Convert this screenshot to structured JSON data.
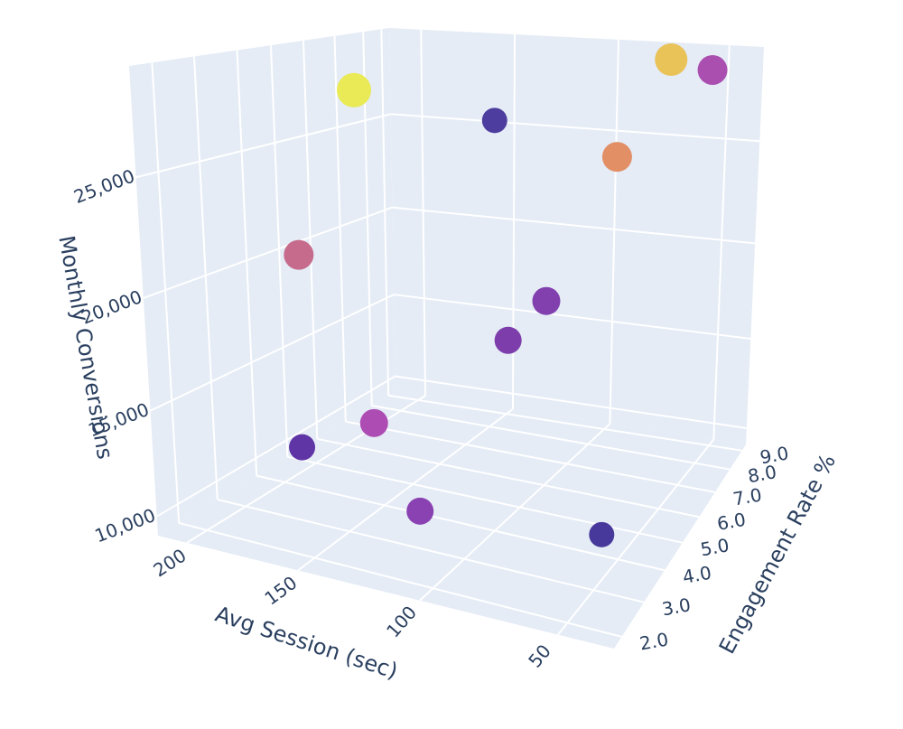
{
  "chart_data": {
    "type": "scatter3d",
    "xlabel": "Avg Session (sec)",
    "ylabel": "Engagement Rate %",
    "zlabel": "Monthly Conversions",
    "x_ticks": {
      "values": [
        200,
        150,
        100,
        50
      ],
      "labels": [
        "200",
        "150",
        "100",
        "50"
      ]
    },
    "y_ticks": {
      "values": [
        2,
        3,
        4,
        5,
        6,
        7,
        8,
        9
      ],
      "labels": [
        "2.0",
        "3.0",
        "4.0",
        "5.0",
        "6.0",
        "7.0",
        "8.0",
        "9.0"
      ]
    },
    "z_ticks": {
      "values": [
        10000,
        15000,
        20000,
        25000
      ],
      "labels": [
        "10,000",
        "15,000",
        "20,000",
        "25,000"
      ]
    },
    "points": [
      {
        "x": 216,
        "y": 7.6,
        "z": 26700,
        "size": 38,
        "color": "#e9ea55"
      },
      {
        "x": 136,
        "y": 7.0,
        "z": 26100,
        "size": 28,
        "color": "#4c3d9f"
      },
      {
        "x": 75,
        "y": 9.2,
        "z": 28800,
        "size": 36,
        "color": "#e9c258"
      },
      {
        "x": 53,
        "y": 8.7,
        "z": 28600,
        "size": 33,
        "color": "#aa4fb0"
      },
      {
        "x": 84,
        "y": 7.4,
        "z": 24700,
        "size": 33,
        "color": "#e28f66"
      },
      {
        "x": 174,
        "y": 3.2,
        "z": 21400,
        "size": 33,
        "color": "#c66b8c"
      },
      {
        "x": 97,
        "y": 5.7,
        "z": 18800,
        "size": 31,
        "color": "#8140ae"
      },
      {
        "x": 105,
        "y": 4.9,
        "z": 17400,
        "size": 30,
        "color": "#7d3dab"
      },
      {
        "x": 131,
        "y": 2.5,
        "z": 15300,
        "size": 31,
        "color": "#ad4db4"
      },
      {
        "x": 156,
        "y": 2.1,
        "z": 14000,
        "size": 29,
        "color": "#5f35a5"
      },
      {
        "x": 101,
        "y": 1.7,
        "z": 12900,
        "size": 30,
        "color": "#8a42b2"
      },
      {
        "x": 36,
        "y": 1.8,
        "z": 13600,
        "size": 28,
        "color": "#46399b"
      }
    ],
    "background_color": "#e5ecf6",
    "grid_color": "#ffffff",
    "label_color": "#2a3f5f"
  }
}
